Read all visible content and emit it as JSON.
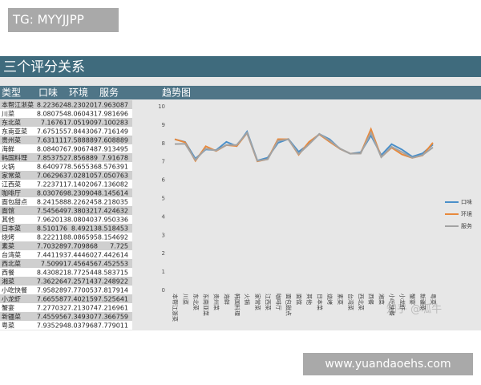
{
  "watermark_top": "TG: MYYJJPP",
  "watermark_bottom": "www.yuandaoehs.com",
  "watermark_chart": "知乎 @呱牛",
  "header": {
    "title": "三个评分关系"
  },
  "table": {
    "columns": [
      "类型",
      "口味",
      "环境",
      "服务"
    ],
    "rows": [
      [
        "本帮江浙菜",
        8.223624,
        8.230201,
        7.963087
      ],
      [
        "川菜",
        8.080754,
        8.060431,
        7.981696
      ],
      [
        "东北菜",
        7.16761,
        7.051909,
        7.100283
      ],
      [
        "东南亚菜",
        7.675155,
        7.844306,
        7.716149
      ],
      [
        "贵州菜",
        7.631111,
        7.588889,
        7.608889
      ],
      [
        "海鲜",
        8.084076,
        7.906748,
        7.913495
      ],
      [
        "韩国料理",
        7.853752,
        7.856889,
        7.91678
      ],
      [
        "火锅",
        8.640977,
        8.565536,
        8.576391
      ],
      [
        "家常菜",
        7.062963,
        7.028105,
        7.050763
      ],
      [
        "江西菜",
        7.223711,
        7.140206,
        7.136082
      ],
      [
        "咖啡厅",
        8.030769,
        8.230904,
        8.145614
      ],
      [
        "面包甜点",
        8.241588,
        8.226245,
        8.218035
      ],
      [
        "面馆",
        7.545649,
        7.380321,
        7.424632
      ],
      [
        "其他",
        7.962013,
        8.080403,
        7.950336
      ],
      [
        "日本菜",
        8.510176,
        8.49213,
        8.518453
      ],
      [
        "烧烤",
        8.222118,
        8.086595,
        8.154692
      ],
      [
        "素菜",
        7.703289,
        7.709868,
        7.725
      ],
      [
        "台湾菜",
        7.441193,
        7.444602,
        7.442614
      ],
      [
        "西北菜",
        7.50991,
        7.456456,
        7.452553
      ],
      [
        "西餐",
        8.430821,
        8.772544,
        8.583715
      ],
      [
        "湘菜",
        7.362264,
        7.257143,
        7.248922
      ],
      [
        "小吃快餐",
        7.958289,
        7.770053,
        7.817914
      ],
      [
        "小龙虾",
        7.665587,
        7.402159,
        7.525641
      ],
      [
        "蟹宴",
        7.277032,
        7.213074,
        7.216961
      ],
      [
        "新疆菜",
        7.455956,
        7.349307,
        7.366759
      ],
      [
        "粤菜",
        7.935294,
        8.037968,
        7.779011
      ]
    ]
  },
  "chart_data": {
    "type": "line",
    "title": "趋势图",
    "categories": [
      "本帮江浙菜",
      "川菜",
      "东北菜",
      "东南亚菜",
      "贵州菜",
      "海鲜",
      "韩国料理",
      "火锅",
      "家常菜",
      "江西菜",
      "咖啡厅",
      "面包甜点",
      "面馆",
      "其他",
      "日本菜",
      "烧烤",
      "素菜",
      "台湾菜",
      "西北菜",
      "西餐",
      "湘菜",
      "小吃快餐",
      "小龙虾",
      "蟹宴",
      "新疆菜",
      "粤菜"
    ],
    "series": [
      {
        "name": "口味",
        "color": "#4a8fc9",
        "values": [
          8.223624,
          8.080754,
          7.16761,
          7.675155,
          7.631111,
          8.084076,
          7.853752,
          8.640977,
          7.062963,
          7.223711,
          8.030769,
          8.241588,
          7.545649,
          7.962013,
          8.510176,
          8.222118,
          7.703289,
          7.441193,
          7.50991,
          8.430821,
          7.362264,
          7.958289,
          7.665587,
          7.277032,
          7.455956,
          7.935294
        ]
      },
      {
        "name": "环境",
        "color": "#e8893c",
        "values": [
          8.230201,
          8.060431,
          7.051909,
          7.844306,
          7.588889,
          7.906748,
          7.856889,
          8.565536,
          7.028105,
          7.140206,
          8.230904,
          8.226245,
          7.380321,
          8.080403,
          8.49213,
          8.086595,
          7.709868,
          7.444602,
          7.456456,
          8.772544,
          7.257143,
          7.770053,
          7.402159,
          7.213074,
          7.349307,
          8.037968
        ]
      },
      {
        "name": "服务",
        "color": "#a3a3a3",
        "values": [
          7.963087,
          7.981696,
          7.100283,
          7.716149,
          7.608889,
          7.913495,
          7.91678,
          8.576391,
          7.050763,
          7.136082,
          8.145614,
          8.218035,
          7.424632,
          7.950336,
          8.518453,
          8.154692,
          7.725,
          7.442614,
          7.452553,
          8.583715,
          7.248922,
          7.817914,
          7.525641,
          7.216961,
          7.366759,
          7.779011
        ]
      }
    ],
    "ylim": [
      0,
      10
    ],
    "yticks": [
      0,
      1,
      2,
      3,
      4,
      5,
      6,
      7,
      8,
      9,
      10
    ],
    "grid": false,
    "legend": "right"
  }
}
